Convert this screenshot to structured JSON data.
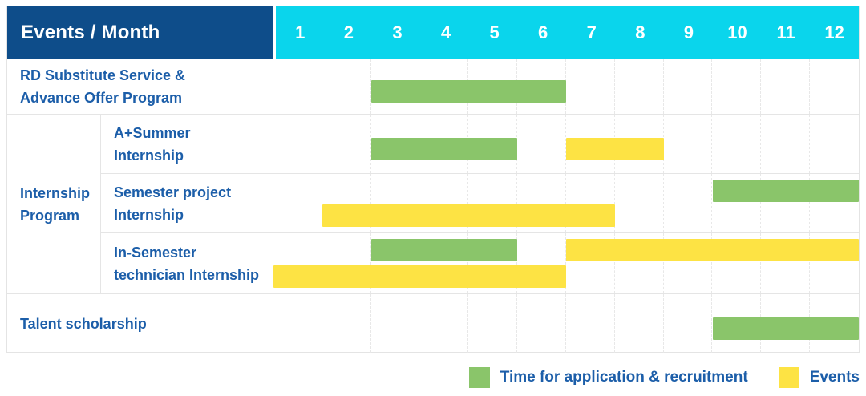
{
  "title_cell": "Events / Month",
  "colors": {
    "header_bg": "#0e4d8a",
    "months_bg": "#0ad5ec",
    "green": "#8ac56a",
    "yellow": "#fde344",
    "label_text": "#1c5ea9"
  },
  "legend": {
    "items": [
      {
        "swatch": "green",
        "label": "Time for application & recruitment"
      },
      {
        "swatch": "yellow",
        "label": "Events"
      }
    ]
  },
  "chart_data": {
    "type": "bar",
    "variant": "gantt",
    "title": "Events / Month",
    "x": {
      "label": "Month",
      "ticks": [
        "1",
        "2",
        "3",
        "4",
        "5",
        "6",
        "7",
        "8",
        "9",
        "10",
        "11",
        "12"
      ],
      "range": [
        1,
        12
      ]
    },
    "series_legend": [
      {
        "name": "Time for application & recruitment",
        "color": "#8ac56a"
      },
      {
        "name": "Events",
        "color": "#fde344"
      }
    ],
    "rows": [
      {
        "group": "",
        "label": "RD Substitute Service &\nAdvance Offer Program",
        "bars": [
          {
            "series": "Time for application & recruitment",
            "color": "green",
            "start_month": 3,
            "end_month": 6,
            "lane": "single"
          }
        ]
      },
      {
        "group": "Internship\nProgram",
        "label": "A+Summer\nInternship",
        "bars": [
          {
            "series": "Time for application & recruitment",
            "color": "green",
            "start_month": 3,
            "end_month": 5,
            "lane": "single"
          },
          {
            "series": "Events",
            "color": "yellow",
            "start_month": 7,
            "end_month": 8,
            "lane": "single"
          }
        ]
      },
      {
        "group": "Internship\nProgram",
        "label": "Semester project\nInternship",
        "bars": [
          {
            "series": "Time for application & recruitment",
            "color": "green",
            "start_month": 10,
            "end_month": 12,
            "lane": "top"
          },
          {
            "series": "Events",
            "color": "yellow",
            "start_month": 2,
            "end_month": 7,
            "lane": "bottom"
          }
        ]
      },
      {
        "group": "Internship\nProgram",
        "label": "In-Semester\ntechnician Internship",
        "bars": [
          {
            "series": "Time for application & recruitment",
            "color": "green",
            "start_month": 3,
            "end_month": 5,
            "lane": "top"
          },
          {
            "series": "Events",
            "color": "yellow",
            "start_month": 7,
            "end_month": 12,
            "lane": "top"
          },
          {
            "series": "Events",
            "color": "yellow",
            "start_month": 1,
            "end_month": 6,
            "lane": "bottom"
          }
        ]
      },
      {
        "group": "",
        "label": "Talent scholarship",
        "bars": [
          {
            "series": "Time for application & recruitment",
            "color": "green",
            "start_month": 10,
            "end_month": 12,
            "lane": "single"
          }
        ]
      }
    ]
  }
}
